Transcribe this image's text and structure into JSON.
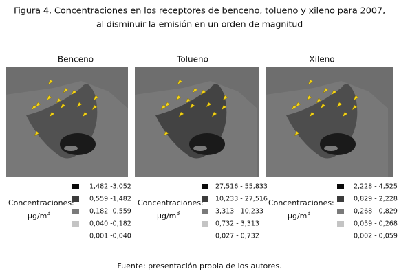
{
  "title": {
    "line1": "Figura 4. Concentraciones en los receptores de benceno, tolueno y xileno para 2007,",
    "line2": "al disminuir la emisión en un orden de magnitud"
  },
  "panels": [
    {
      "name": "Benceno",
      "legend_label": "Concentraciones:",
      "unit": "µg/m",
      "unit_exponent": "3",
      "ranges": [
        "1,482 -3,052",
        "0,559 -1,482",
        "0,182 -0,559",
        "0,040 -0,182",
        "0,001 -0,040"
      ]
    },
    {
      "name": "Tolueno",
      "legend_label": "Concentraciones:",
      "unit": "µg/m",
      "unit_exponent": "3",
      "ranges": [
        "27,516 - 55,833",
        "10,233 - 27,516",
        "3,313 - 10,233",
        "0,732 - 3,313",
        "0,027 - 0,732"
      ]
    },
    {
      "name": "Xileno",
      "legend_label": "Concentraciones:",
      "unit": "µg/m",
      "unit_exponent": "3",
      "ranges": [
        "2,228 - 4,525",
        "0,829 - 2,228",
        "0,268 - 0,829",
        "0,059 - 0,268",
        "0,002 - 0,059"
      ]
    }
  ],
  "source": "Fuente: presentación propia de los autores."
}
